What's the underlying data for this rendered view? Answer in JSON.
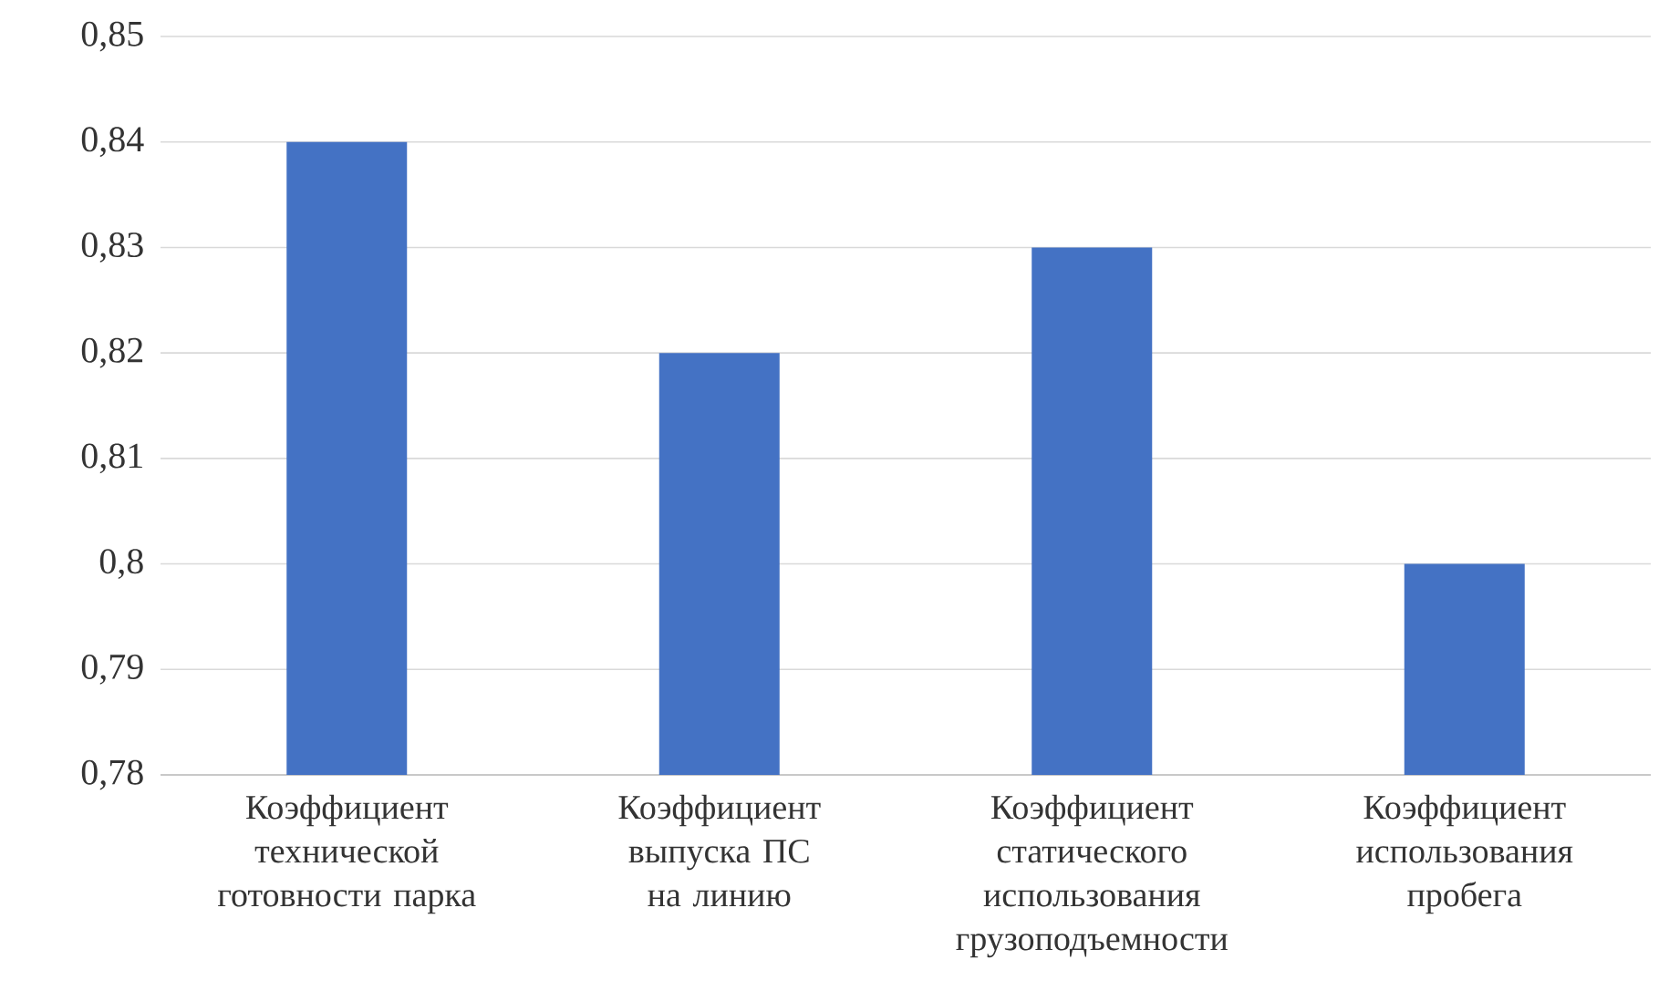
{
  "chart_data": {
    "type": "bar",
    "categories": [
      "Коэффициент технической готовности парка",
      "Коэффициент выпуска ПС на линию",
      "Коэффициент статического использования грузоподъемности",
      "Коэффициент использования пробега"
    ],
    "values": [
      0.84,
      0.82,
      0.83,
      0.8
    ],
    "color": "#4472c4",
    "ylim": [
      0.78,
      0.85
    ],
    "yticks": [
      {
        "value": 0.78,
        "label": "0,78"
      },
      {
        "value": 0.79,
        "label": "0,79"
      },
      {
        "value": 0.8,
        "label": "0,8"
      },
      {
        "value": 0.81,
        "label": "0,81"
      },
      {
        "value": 0.82,
        "label": "0,82"
      },
      {
        "value": 0.83,
        "label": "0,83"
      },
      {
        "value": 0.84,
        "label": "0,84"
      },
      {
        "value": 0.85,
        "label": "0,85"
      }
    ],
    "grid": "y"
  }
}
